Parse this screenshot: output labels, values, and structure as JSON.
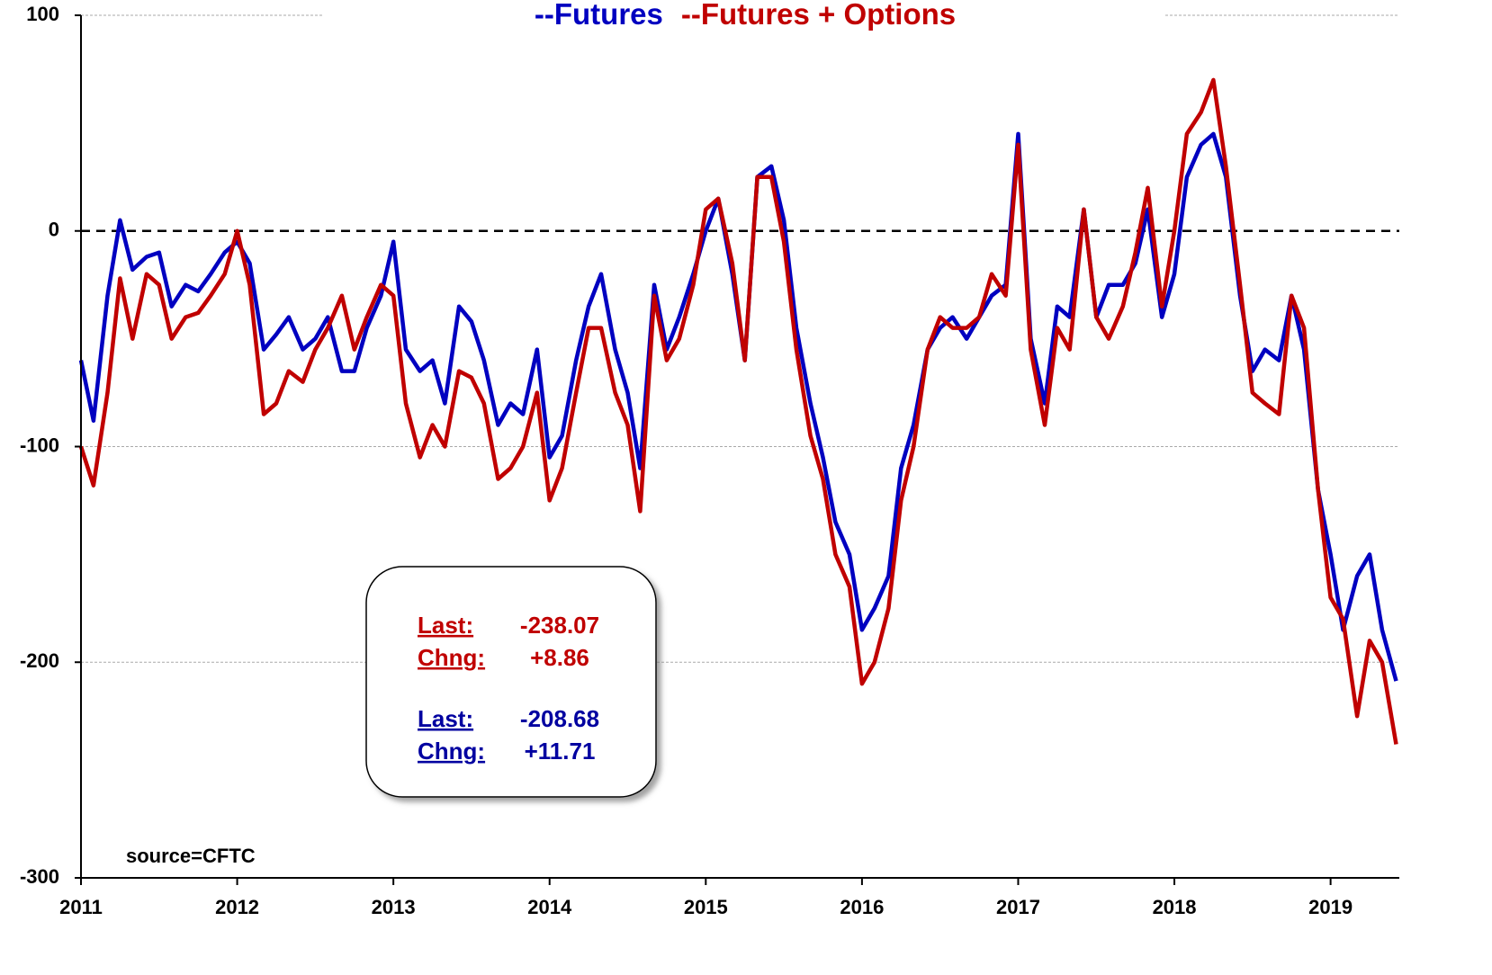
{
  "chart_data": {
    "type": "line",
    "x": [
      2011.0,
      2011.08,
      2011.17,
      2011.25,
      2011.33,
      2011.42,
      2011.5,
      2011.58,
      2011.67,
      2011.75,
      2011.83,
      2011.92,
      2012.0,
      2012.08,
      2012.17,
      2012.25,
      2012.33,
      2012.42,
      2012.5,
      2012.58,
      2012.67,
      2012.75,
      2012.83,
      2012.92,
      2013.0,
      2013.08,
      2013.17,
      2013.25,
      2013.33,
      2013.42,
      2013.5,
      2013.58,
      2013.67,
      2013.75,
      2013.83,
      2013.92,
      2014.0,
      2014.08,
      2014.17,
      2014.25,
      2014.33,
      2014.42,
      2014.5,
      2014.58,
      2014.67,
      2014.75,
      2014.83,
      2014.92,
      2015.0,
      2015.08,
      2015.17,
      2015.25,
      2015.33,
      2015.42,
      2015.5,
      2015.58,
      2015.67,
      2015.75,
      2015.83,
      2015.92,
      2016.0,
      2016.08,
      2016.17,
      2016.25,
      2016.33,
      2016.42,
      2016.5,
      2016.58,
      2016.67,
      2016.75,
      2016.83,
      2016.92,
      2017.0,
      2017.08,
      2017.17,
      2017.25,
      2017.33,
      2017.42,
      2017.5,
      2017.58,
      2017.67,
      2017.75,
      2017.83,
      2017.92,
      2018.0,
      2018.08,
      2018.17,
      2018.25,
      2018.33,
      2018.42,
      2018.5,
      2018.58,
      2018.67,
      2018.75,
      2018.83,
      2018.92,
      2019.0,
      2019.08,
      2019.17,
      2019.25,
      2019.33,
      2019.42
    ],
    "series": [
      {
        "name": "--Futures",
        "color": "#0000c0",
        "values": [
          -60,
          -88,
          -30,
          5,
          -18,
          -12,
          -10,
          -35,
          -25,
          -28,
          -20,
          -10,
          -5,
          -15,
          -55,
          -48,
          -40,
          -55,
          -50,
          -40,
          -65,
          -65,
          -45,
          -30,
          -5,
          -55,
          -65,
          -60,
          -80,
          -35,
          -42,
          -60,
          -90,
          -80,
          -85,
          -55,
          -105,
          -95,
          -60,
          -35,
          -20,
          -55,
          -75,
          -110,
          -25,
          -55,
          -40,
          -20,
          0,
          15,
          -20,
          -60,
          25,
          30,
          5,
          -45,
          -80,
          -105,
          -135,
          -150,
          -185,
          -175,
          -160,
          -110,
          -90,
          -55,
          -45,
          -40,
          -50,
          -40,
          -30,
          -25,
          45,
          -50,
          -80,
          -35,
          -40,
          10,
          -40,
          -25,
          -25,
          -15,
          10,
          -40,
          -20,
          25,
          40,
          45,
          25,
          -30,
          -65,
          -55,
          -60,
          -30,
          -55,
          -120,
          -150,
          -185,
          -160,
          -150,
          -185,
          -208.68
        ]
      },
      {
        "name": "--Futures + Options",
        "color": "#c00000",
        "values": [
          -100,
          -118,
          -75,
          -22,
          -50,
          -20,
          -25,
          -50,
          -40,
          -38,
          -30,
          -20,
          0,
          -25,
          -85,
          -80,
          -65,
          -70,
          -55,
          -45,
          -30,
          -55,
          -40,
          -25,
          -30,
          -80,
          -105,
          -90,
          -100,
          -65,
          -68,
          -80,
          -115,
          -110,
          -100,
          -75,
          -125,
          -110,
          -75,
          -45,
          -45,
          -75,
          -90,
          -130,
          -30,
          -60,
          -50,
          -25,
          10,
          15,
          -15,
          -60,
          25,
          25,
          -5,
          -55,
          -95,
          -115,
          -150,
          -165,
          -210,
          -200,
          -175,
          -125,
          -100,
          -55,
          -40,
          -45,
          -45,
          -40,
          -20,
          -30,
          40,
          -55,
          -90,
          -45,
          -55,
          10,
          -40,
          -50,
          -35,
          -10,
          20,
          -35,
          0,
          45,
          55,
          70,
          30,
          -25,
          -75,
          -80,
          -85,
          -30,
          -45,
          -120,
          -170,
          -180,
          -225,
          -190,
          -200,
          -238.07
        ]
      }
    ],
    "xlim": [
      2011,
      2019.44
    ],
    "xticks": [
      2011,
      2012,
      2013,
      2014,
      2015,
      2016,
      2017,
      2018,
      2019
    ],
    "ylim": [
      -300,
      100
    ],
    "yticks": [
      100,
      0,
      -100,
      -200,
      -300
    ],
    "grid": true,
    "zero_line": true,
    "summary": [
      {
        "color": "#c00000",
        "rows": [
          [
            "Last:",
            "-238.07"
          ],
          [
            "Chng:",
            "+8.86"
          ]
        ]
      },
      {
        "color": "#0000a0",
        "rows": [
          [
            "Last:",
            "-208.68"
          ],
          [
            "Chng:",
            "+11.71"
          ]
        ]
      }
    ],
    "source": "source=CFTC"
  }
}
